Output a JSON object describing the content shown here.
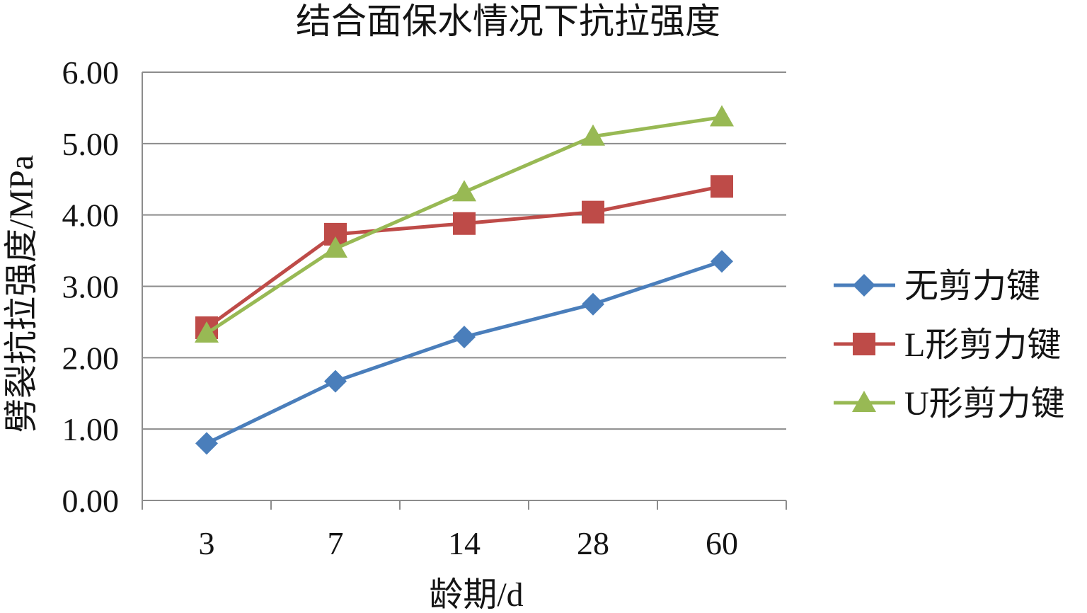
{
  "chart_data": {
    "type": "line",
    "title": "结合面保水情况下抗拉强度",
    "xlabel": "龄期/d",
    "ylabel": "劈裂抗拉强度/MPa",
    "categories": [
      "3",
      "7",
      "14",
      "28",
      "60"
    ],
    "ylim": [
      0,
      6
    ],
    "yticks": [
      "0.00",
      "1.00",
      "2.00",
      "3.00",
      "4.00",
      "5.00",
      "6.00"
    ],
    "grid": true,
    "legend_position": "right",
    "axis_color": "#8c8c8c",
    "series": [
      {
        "name": "无剪力键",
        "marker": "diamond",
        "color": "#4a7ebb",
        "values": [
          0.8,
          1.67,
          2.29,
          2.75,
          3.35
        ]
      },
      {
        "name": "L形剪力键",
        "marker": "square",
        "color": "#be4b48",
        "values": [
          2.42,
          3.73,
          3.88,
          4.04,
          4.4
        ]
      },
      {
        "name": "U形剪力键",
        "marker": "triangle",
        "color": "#98b954",
        "values": [
          2.34,
          3.53,
          4.32,
          5.1,
          5.37
        ]
      }
    ]
  }
}
